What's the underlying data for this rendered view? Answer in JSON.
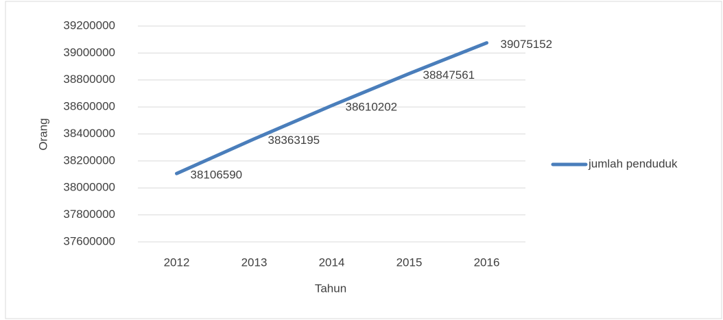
{
  "chart_data": {
    "type": "line",
    "categories": [
      "2012",
      "2013",
      "2014",
      "2015",
      "2016"
    ],
    "series": [
      {
        "name": "jumlah penduduk",
        "color": "#4a7ebb",
        "values": [
          38106590,
          38363195,
          38610202,
          38847561,
          39075152
        ]
      }
    ],
    "x_label": "Tahun",
    "y_label": "Orang",
    "ylim": [
      37600000,
      39200000
    ],
    "yticks": [
      37600000,
      37800000,
      38000000,
      38200000,
      38400000,
      38600000,
      38800000,
      39000000,
      39200000
    ],
    "grid": true,
    "legend": "right",
    "data_labels": true
  }
}
